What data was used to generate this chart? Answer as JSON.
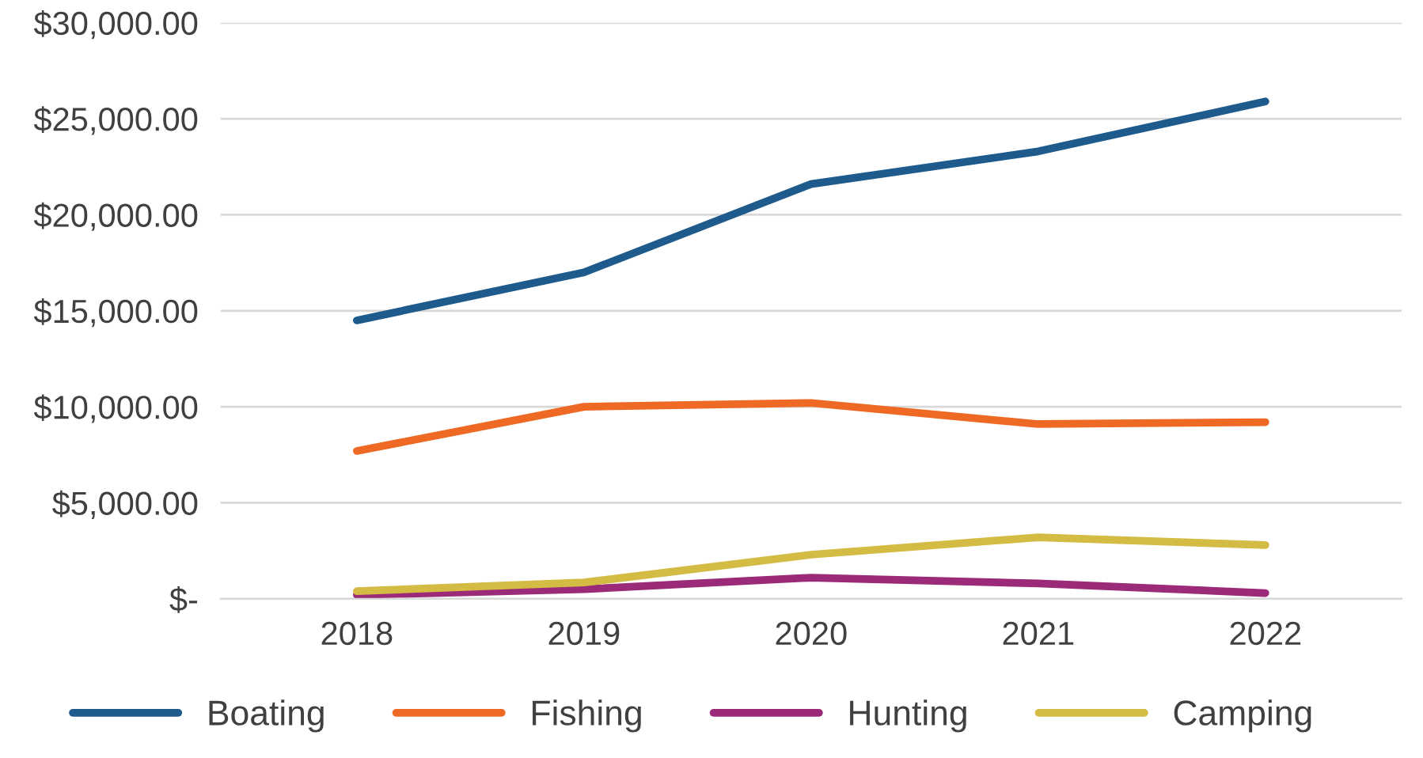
{
  "chart_data": {
    "type": "line",
    "categories": [
      "2018",
      "2019",
      "2020",
      "2021",
      "2022"
    ],
    "series": [
      {
        "name": "Boating",
        "color": "#1f5a8c",
        "values": [
          14500,
          17000,
          21600,
          23300,
          25900
        ]
      },
      {
        "name": "Fishing",
        "color": "#ee6a24",
        "values": [
          7700,
          10000,
          10200,
          9100,
          9200
        ]
      },
      {
        "name": "Hunting",
        "color": "#9b2a78",
        "values": [
          200,
          500,
          1100,
          800,
          300
        ]
      },
      {
        "name": "Camping",
        "color": "#d4bb43",
        "values": [
          400,
          850,
          2300,
          3200,
          2800
        ]
      }
    ],
    "ylim": [
      0,
      30000
    ],
    "yticks": [
      {
        "value": 0,
        "label": "$-"
      },
      {
        "value": 5000,
        "label": "$5,000.00"
      },
      {
        "value": 10000,
        "label": "$10,000.00"
      },
      {
        "value": 15000,
        "label": "$15,000.00"
      },
      {
        "value": 20000,
        "label": "$20,000.00"
      },
      {
        "value": 25000,
        "label": "$25,000.00"
      },
      {
        "value": 30000,
        "label": "$30,000.00"
      }
    ],
    "grid": "y",
    "legend": "bottom",
    "marker": "none",
    "line_style": "solid"
  }
}
